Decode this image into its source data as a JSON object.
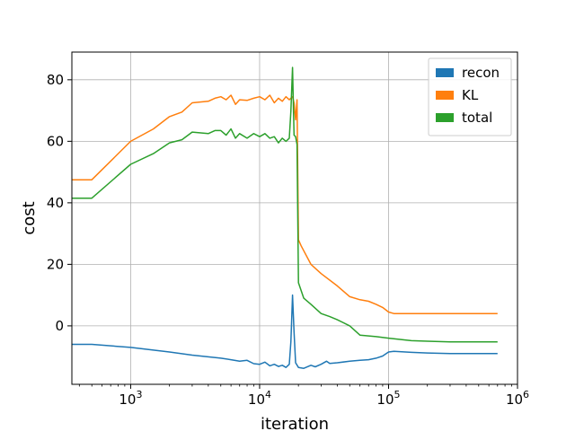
{
  "chart_data": {
    "type": "line",
    "xscale": "log",
    "xlim": [
      350,
      1000000
    ],
    "ylim": [
      -19,
      89
    ],
    "xlabel": "iteration",
    "ylabel": "cost",
    "x_ticks": [
      {
        "value": 1000,
        "base": "10",
        "exp": "3"
      },
      {
        "value": 10000,
        "base": "10",
        "exp": "4"
      },
      {
        "value": 100000,
        "base": "10",
        "exp": "5"
      },
      {
        "value": 1000000,
        "base": "10",
        "exp": "6"
      }
    ],
    "y_ticks": [
      {
        "value": 0,
        "label": "0"
      },
      {
        "value": 20,
        "label": "20"
      },
      {
        "value": 40,
        "label": "40"
      },
      {
        "value": 60,
        "label": "60"
      },
      {
        "value": 80,
        "label": "80"
      }
    ],
    "grid": true,
    "legend_position": "top-right",
    "series": [
      {
        "name": "recon",
        "color": "#1f77b4",
        "points": [
          [
            350,
            -6
          ],
          [
            500,
            -6
          ],
          [
            1000,
            -7
          ],
          [
            2000,
            -8.5
          ],
          [
            3000,
            -9.5
          ],
          [
            5000,
            -10.5
          ],
          [
            6000,
            -11
          ],
          [
            7000,
            -11.5
          ],
          [
            8000,
            -11.2
          ],
          [
            9000,
            -12.3
          ],
          [
            10000,
            -12.5
          ],
          [
            11000,
            -11.8
          ],
          [
            12000,
            -13
          ],
          [
            13000,
            -12.5
          ],
          [
            14000,
            -13.2
          ],
          [
            15000,
            -12.8
          ],
          [
            16000,
            -13.5
          ],
          [
            17000,
            -12.5
          ],
          [
            17500,
            -5
          ],
          [
            18000,
            10
          ],
          [
            18500,
            -2
          ],
          [
            19000,
            -12
          ],
          [
            20000,
            -13.5
          ],
          [
            22000,
            -13.8
          ],
          [
            25000,
            -12.8
          ],
          [
            27000,
            -13.3
          ],
          [
            30000,
            -12.5
          ],
          [
            33000,
            -11.5
          ],
          [
            35000,
            -12.2
          ],
          [
            40000,
            -12
          ],
          [
            50000,
            -11.5
          ],
          [
            60000,
            -11.2
          ],
          [
            70000,
            -11
          ],
          [
            80000,
            -10.5
          ],
          [
            90000,
            -9.8
          ],
          [
            100000,
            -8.5
          ],
          [
            110000,
            -8.3
          ],
          [
            150000,
            -8.6
          ],
          [
            200000,
            -8.8
          ],
          [
            300000,
            -9
          ],
          [
            400000,
            -9
          ],
          [
            500000,
            -9
          ],
          [
            700000,
            -9
          ]
        ]
      },
      {
        "name": "KL",
        "color": "#ff7f0e",
        "points": [
          [
            350,
            47.5
          ],
          [
            500,
            47.5
          ],
          [
            1000,
            60
          ],
          [
            1500,
            64
          ],
          [
            2000,
            68
          ],
          [
            2500,
            69.5
          ],
          [
            3000,
            72.5
          ],
          [
            4000,
            73
          ],
          [
            4500,
            74
          ],
          [
            5000,
            74.5
          ],
          [
            5500,
            73.5
          ],
          [
            6000,
            75
          ],
          [
            6500,
            72
          ],
          [
            7000,
            73.5
          ],
          [
            8000,
            73.3
          ],
          [
            9000,
            74
          ],
          [
            10000,
            74.5
          ],
          [
            11000,
            73.5
          ],
          [
            12000,
            75
          ],
          [
            13000,
            72.5
          ],
          [
            14000,
            74
          ],
          [
            15000,
            73
          ],
          [
            16000,
            74.5
          ],
          [
            17000,
            73.5
          ],
          [
            18000,
            74.5
          ],
          [
            18500,
            72.5
          ],
          [
            19000,
            67
          ],
          [
            19500,
            73.5
          ],
          [
            20000,
            28
          ],
          [
            21000,
            26
          ],
          [
            25000,
            20
          ],
          [
            30000,
            17
          ],
          [
            40000,
            13
          ],
          [
            50000,
            9.5
          ],
          [
            60000,
            8.5
          ],
          [
            70000,
            8
          ],
          [
            80000,
            7
          ],
          [
            90000,
            6
          ],
          [
            100000,
            4.5
          ],
          [
            110000,
            4
          ],
          [
            150000,
            4
          ],
          [
            200000,
            4
          ],
          [
            300000,
            4
          ],
          [
            400000,
            4
          ],
          [
            500000,
            4
          ],
          [
            700000,
            4
          ]
        ]
      },
      {
        "name": "total",
        "color": "#2ca02c",
        "points": [
          [
            350,
            41.5
          ],
          [
            500,
            41.5
          ],
          [
            1000,
            52.5
          ],
          [
            1500,
            56
          ],
          [
            2000,
            59.5
          ],
          [
            2500,
            60.5
          ],
          [
            3000,
            63
          ],
          [
            4000,
            62.5
          ],
          [
            4500,
            63.5
          ],
          [
            5000,
            63.5
          ],
          [
            5500,
            62
          ],
          [
            6000,
            64
          ],
          [
            6500,
            61
          ],
          [
            7000,
            62.5
          ],
          [
            8000,
            61
          ],
          [
            9000,
            62.5
          ],
          [
            10000,
            61.5
          ],
          [
            11000,
            62.5
          ],
          [
            12000,
            61
          ],
          [
            13000,
            61.5
          ],
          [
            14000,
            59.5
          ],
          [
            15000,
            61
          ],
          [
            16000,
            60
          ],
          [
            17000,
            61
          ],
          [
            17500,
            70
          ],
          [
            18000,
            84
          ],
          [
            18500,
            62
          ],
          [
            19000,
            61.5
          ],
          [
            19500,
            59
          ],
          [
            20000,
            14
          ],
          [
            22000,
            9
          ],
          [
            25000,
            7
          ],
          [
            30000,
            4
          ],
          [
            35000,
            3
          ],
          [
            40000,
            2
          ],
          [
            50000,
            0
          ],
          [
            60000,
            -3
          ],
          [
            80000,
            -3.5
          ],
          [
            100000,
            -4
          ],
          [
            150000,
            -4.8
          ],
          [
            200000,
            -5
          ],
          [
            300000,
            -5.2
          ],
          [
            500000,
            -5.2
          ],
          [
            700000,
            -5.2
          ]
        ]
      }
    ]
  }
}
